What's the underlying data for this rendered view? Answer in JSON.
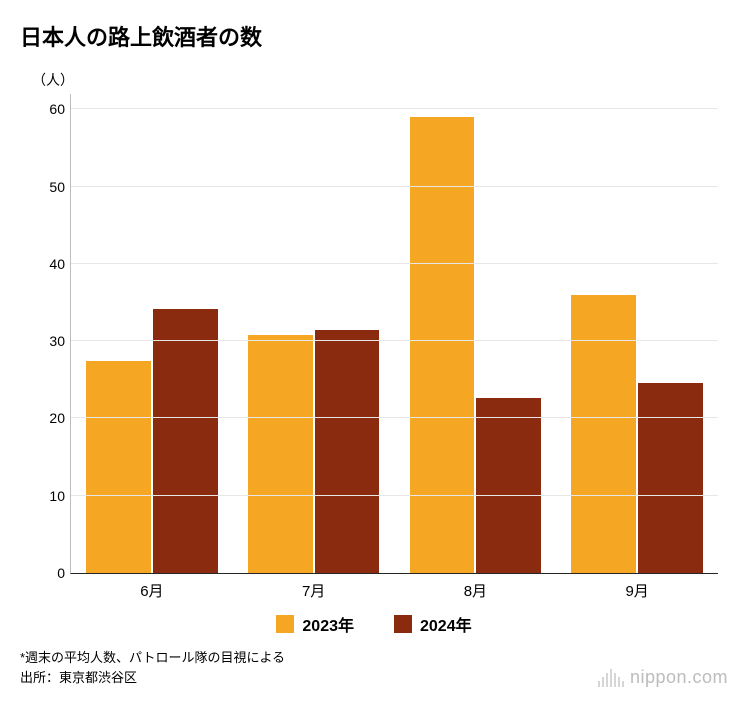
{
  "chart": {
    "type": "bar",
    "title": "日本人の路上飲酒者の数",
    "ylabel": "（人）",
    "ylim": [
      0,
      62
    ],
    "yticks": [
      0,
      10,
      20,
      30,
      40,
      50,
      60
    ],
    "categories": [
      "6月",
      "7月",
      "8月",
      "9月"
    ],
    "series": [
      {
        "name": "2023年",
        "color": "#f5a623",
        "values": [
          27.5,
          30.8,
          59.0,
          36.0
        ]
      },
      {
        "name": "2024年",
        "color": "#8a2a0f",
        "values": [
          34.2,
          31.4,
          22.7,
          24.6
        ]
      }
    ],
    "bar_group_gap": 2,
    "background_color": "#ffffff",
    "grid_color": "#e6e6e6",
    "axis_color_left": "#bdbdbd",
    "axis_color_bottom": "#262626",
    "title_fontsize": 22,
    "label_fontsize": 14,
    "tick_fontsize": 14,
    "legend_fontsize": 16
  },
  "footnotes": {
    "line1": "*週末の平均人数、パトロール隊の目視による",
    "line2": "出所：東京都渋谷区"
  },
  "logo": {
    "text": "nippon.com",
    "color": "#bcbcbc"
  }
}
